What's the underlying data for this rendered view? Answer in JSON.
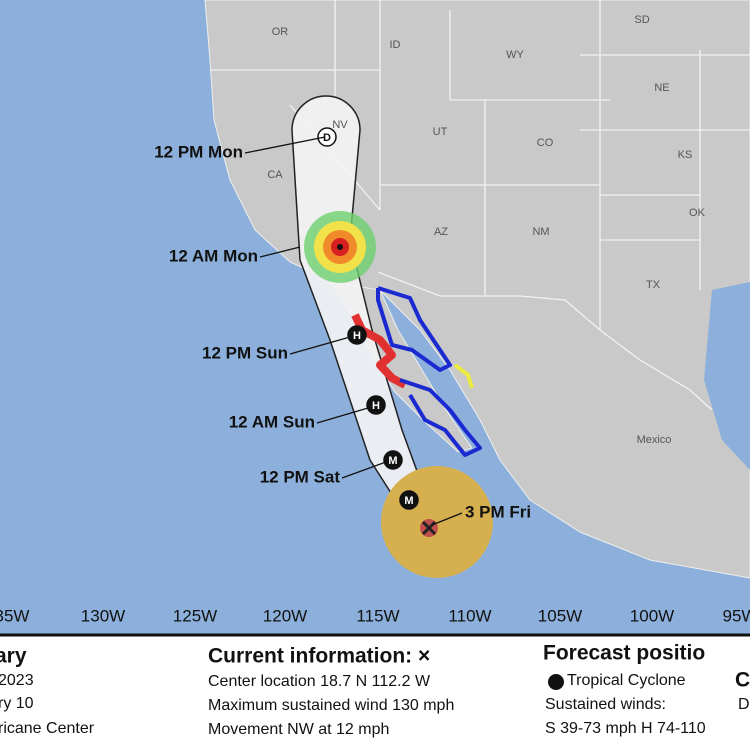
{
  "map": {
    "state_labels": [
      "OR",
      "ID",
      "WY",
      "SD",
      "NV",
      "CA",
      "UT",
      "CO",
      "NE",
      "KS",
      "AZ",
      "NM",
      "OK",
      "TX",
      "Mexico"
    ],
    "longitude_labels": [
      "35W",
      "130W",
      "125W",
      "120W",
      "115W",
      "110W",
      "105W",
      "100W",
      "95W"
    ],
    "forecast_labels": [
      "12 PM Mon",
      "12 AM Mon",
      "12 PM Sun",
      "12 AM Sun",
      "12 PM Sat",
      "3 PM Fri"
    ],
    "track_markers": [
      "D",
      "H",
      "H",
      "M",
      "M"
    ]
  },
  "info": {
    "left": [
      "ary",
      "2023",
      "ry 10",
      "ricane Center"
    ],
    "current": {
      "heading": "Current information: ×",
      "lines": [
        "Center location 18.7 N 112.2 W",
        "Maximum sustained wind 130 mph",
        "Movement NW at 12 mph"
      ]
    },
    "forecast": {
      "heading": "Forecast positio",
      "items": [
        "Tropical Cyclone",
        "C",
        "Sustained winds:",
        "D",
        "S 39-73 mph  H 74-110"
      ]
    }
  }
}
